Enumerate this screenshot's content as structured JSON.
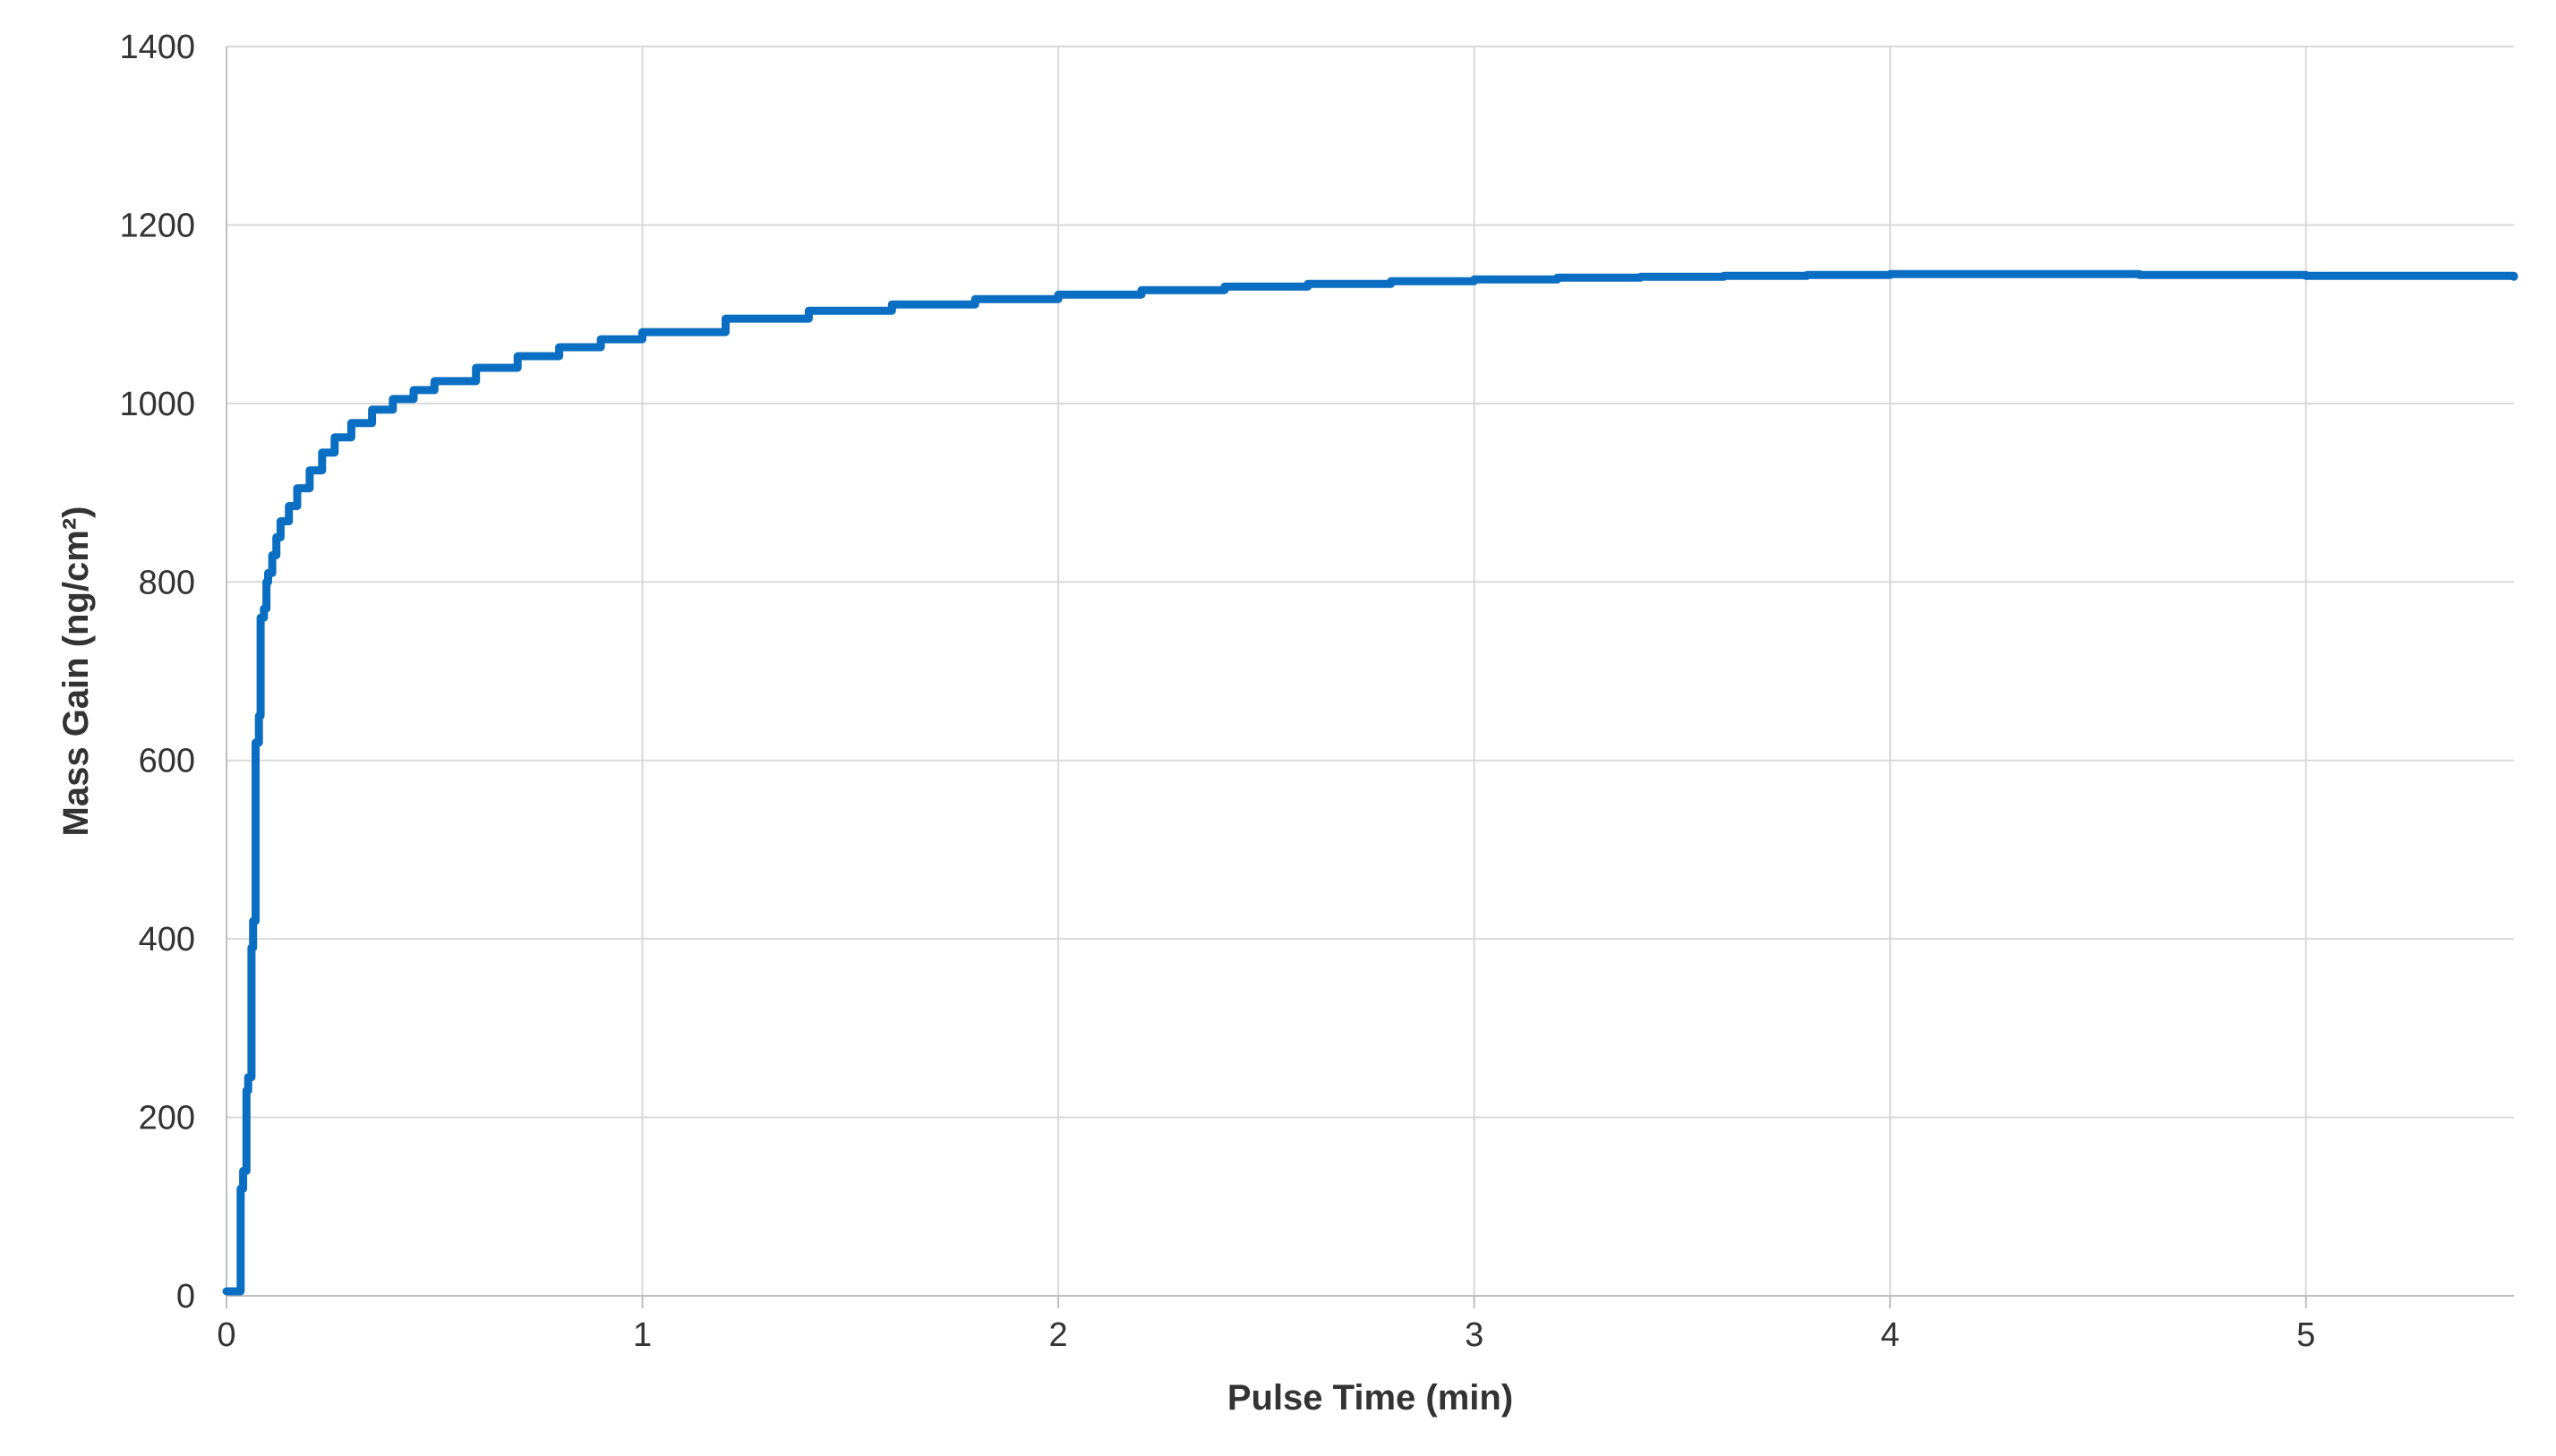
{
  "chart_data": {
    "type": "line",
    "title": "",
    "xlabel": "Pulse Time (min)",
    "ylabel": "Mass Gain (ng/cm²)",
    "xlim": [
      0,
      5.5
    ],
    "ylim": [
      0,
      1400
    ],
    "x_ticks": [
      0,
      1,
      2,
      3,
      4,
      5
    ],
    "y_ticks": [
      0,
      200,
      400,
      600,
      800,
      1000,
      1200,
      1400
    ],
    "x_tick_labels": [
      "0",
      "1",
      "2",
      "3",
      "4",
      "5"
    ],
    "y_tick_labels": [
      "0",
      "200",
      "400",
      "600",
      "800",
      "1000",
      "1200",
      "1400"
    ],
    "grid": true,
    "legend": "none",
    "series": [
      {
        "color": "#0a6fc2",
        "x": [
          0,
          0.03,
          0.034,
          0.04,
          0.048,
          0.052,
          0.06,
          0.064,
          0.07,
          0.078,
          0.082,
          0.09,
          0.096,
          0.1,
          0.11,
          0.12,
          0.13,
          0.15,
          0.17,
          0.2,
          0.23,
          0.26,
          0.3,
          0.35,
          0.4,
          0.45,
          0.5,
          0.6,
          0.7,
          0.8,
          0.9,
          1.0,
          1.2,
          1.4,
          1.6,
          1.8,
          2.0,
          2.2,
          2.4,
          2.6,
          2.8,
          3.0,
          3.2,
          3.4,
          3.6,
          3.8,
          4.0,
          4.2,
          4.4,
          4.6,
          4.8,
          5.0,
          5.2,
          5.4,
          5.5
        ],
        "y": [
          5,
          5,
          120,
          140,
          230,
          245,
          390,
          420,
          620,
          650,
          760,
          770,
          800,
          810,
          830,
          850,
          868,
          885,
          905,
          925,
          945,
          962,
          978,
          993,
          1005,
          1015,
          1025,
          1040,
          1053,
          1063,
          1072,
          1080,
          1095,
          1104,
          1111,
          1117,
          1122,
          1127,
          1131,
          1134,
          1137,
          1139,
          1141,
          1142,
          1143,
          1144,
          1145,
          1145,
          1145,
          1144,
          1144,
          1143,
          1143,
          1143,
          1142
        ]
      }
    ]
  }
}
